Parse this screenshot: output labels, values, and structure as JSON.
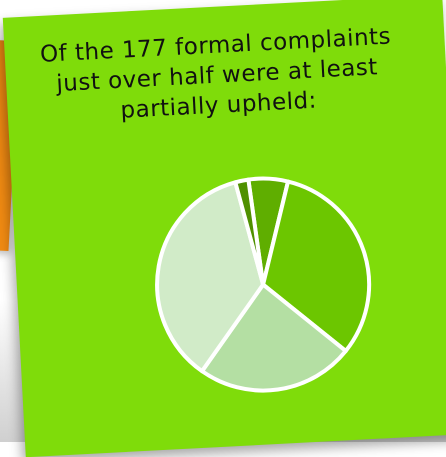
{
  "note": {
    "caption_lines": [
      "Of the 177 formal complaints",
      "just over half were at least",
      "partially upheld:"
    ]
  },
  "chart_data": {
    "type": "pie",
    "title": "",
    "start_angle_deg": -5,
    "slices": [
      {
        "value": 6,
        "color": "#5fae00"
      },
      {
        "value": 32,
        "color": "#6cc600"
      },
      {
        "value": 24,
        "color": "#b4dfa3"
      },
      {
        "value": 36,
        "color": "#d1ebc8"
      },
      {
        "value": 2,
        "color": "#4f9000"
      }
    ],
    "stroke_color": "#ffffff"
  }
}
